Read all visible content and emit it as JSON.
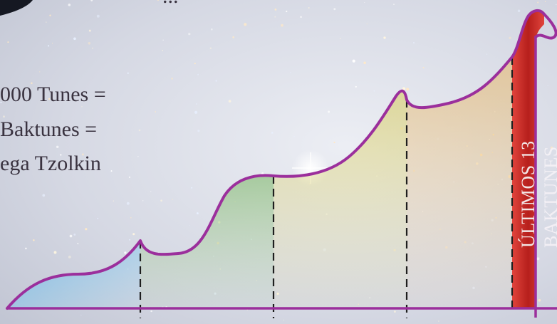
{
  "top_text": "...",
  "caption": {
    "line1": "000 Tunes =",
    "line2": "Baktunes =",
    "line3": "ega Tzolkin"
  },
  "labels": {
    "last_13": "ÚLTIMOS 13",
    "baktunes": "BAKTUNES"
  },
  "colors": {
    "curve": "#9b2f9c",
    "axis": "#9b2f9c",
    "red_band": "#c42a26",
    "divider": "#1e1e1e",
    "sky": "#d7dbe6"
  }
}
